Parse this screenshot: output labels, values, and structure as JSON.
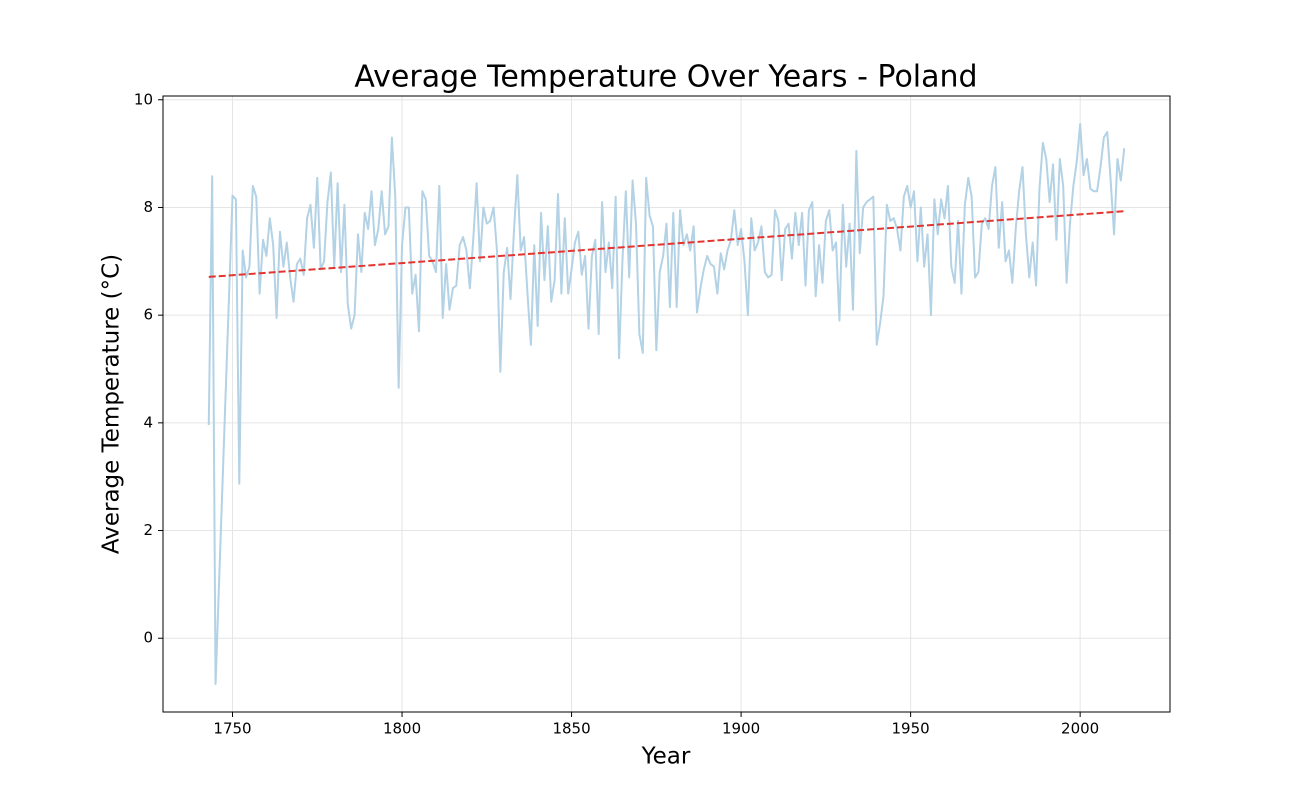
{
  "chart_data": {
    "type": "line",
    "title": "Average Temperature Over Years - Poland",
    "xlabel": "Year",
    "ylabel": "Average Temperature (°C)",
    "xlim": [
      1729.5,
      2026.5
    ],
    "ylim": [
      -1.37,
      10.07
    ],
    "xticks": [
      1750,
      1800,
      1850,
      1900,
      1950,
      2000
    ],
    "yticks": [
      0,
      2,
      4,
      6,
      8,
      10
    ],
    "grid": true,
    "series": [
      {
        "color": "#b3d2e5",
        "linestyle": "solid",
        "x": [
          1743,
          1744,
          1745,
          1750,
          1751,
          1752,
          1753,
          1754,
          1755,
          1756,
          1757,
          1758,
          1759,
          1760,
          1761,
          1762,
          1763,
          1764,
          1765,
          1766,
          1767,
          1768,
          1769,
          1770,
          1771,
          1772,
          1773,
          1774,
          1775,
          1776,
          1777,
          1778,
          1779,
          1780,
          1781,
          1782,
          1783,
          1784,
          1785,
          1786,
          1787,
          1788,
          1789,
          1790,
          1791,
          1792,
          1793,
          1794,
          1795,
          1796,
          1797,
          1798,
          1799,
          1800,
          1801,
          1802,
          1803,
          1804,
          1805,
          1806,
          1807,
          1808,
          1809,
          1810,
          1811,
          1812,
          1813,
          1814,
          1815,
          1816,
          1817,
          1818,
          1819,
          1820,
          1821,
          1822,
          1823,
          1824,
          1825,
          1826,
          1827,
          1828,
          1829,
          1830,
          1831,
          1832,
          1833,
          1834,
          1835,
          1836,
          1837,
          1838,
          1839,
          1840,
          1841,
          1842,
          1843,
          1844,
          1845,
          1846,
          1847,
          1848,
          1849,
          1850,
          1851,
          1852,
          1853,
          1854,
          1855,
          1856,
          1857,
          1858,
          1859,
          1860,
          1861,
          1862,
          1863,
          1864,
          1865,
          1866,
          1867,
          1868,
          1869,
          1870,
          1871,
          1872,
          1873,
          1874,
          1875,
          1876,
          1877,
          1878,
          1879,
          1880,
          1881,
          1882,
          1883,
          1884,
          1885,
          1886,
          1887,
          1888,
          1889,
          1890,
          1891,
          1892,
          1893,
          1894,
          1895,
          1896,
          1897,
          1898,
          1899,
          1900,
          1901,
          1902,
          1903,
          1904,
          1905,
          1906,
          1907,
          1908,
          1909,
          1910,
          1911,
          1912,
          1913,
          1914,
          1915,
          1916,
          1917,
          1918,
          1919,
          1920,
          1921,
          1922,
          1923,
          1924,
          1925,
          1926,
          1927,
          1928,
          1929,
          1930,
          1931,
          1932,
          1933,
          1934,
          1935,
          1936,
          1937,
          1938,
          1939,
          1940,
          1941,
          1942,
          1943,
          1944,
          1945,
          1946,
          1947,
          1948,
          1949,
          1950,
          1951,
          1952,
          1953,
          1954,
          1955,
          1956,
          1957,
          1958,
          1959,
          1960,
          1961,
          1962,
          1963,
          1964,
          1965,
          1966,
          1967,
          1968,
          1969,
          1970,
          1971,
          1972,
          1973,
          1974,
          1975,
          1976,
          1977,
          1978,
          1979,
          1980,
          1981,
          1982,
          1983,
          1984,
          1985,
          1986,
          1987,
          1988,
          1989,
          1990,
          1991,
          1992,
          1993,
          1994,
          1995,
          1996,
          1997,
          1998,
          1999,
          2000,
          2001,
          2002,
          2003,
          2004,
          2005,
          2006,
          2007,
          2008,
          2009,
          2010,
          2011,
          2012,
          2013
        ],
        "values": [
          3.96,
          8.58,
          -0.85,
          8.22,
          8.15,
          2.87,
          7.2,
          6.7,
          6.9,
          8.4,
          8.2,
          6.4,
          7.4,
          7.1,
          7.8,
          7.3,
          5.95,
          7.55,
          6.9,
          7.35,
          6.7,
          6.25,
          6.95,
          7.05,
          6.75,
          7.8,
          8.05,
          7.25,
          8.55,
          6.85,
          7.0,
          8.1,
          8.65,
          6.9,
          8.45,
          6.8,
          8.05,
          6.2,
          5.75,
          6.0,
          7.5,
          6.8,
          7.9,
          7.6,
          8.3,
          7.3,
          7.6,
          8.3,
          7.5,
          7.65,
          9.3,
          8.2,
          4.65,
          7.3,
          8.0,
          8.0,
          6.4,
          6.75,
          5.7,
          8.3,
          8.15,
          7.1,
          7.0,
          6.8,
          8.4,
          5.95,
          6.95,
          6.1,
          6.5,
          6.55,
          7.3,
          7.45,
          7.2,
          6.5,
          7.4,
          8.45,
          7.0,
          8.0,
          7.7,
          7.75,
          8.0,
          7.2,
          4.95,
          6.8,
          7.25,
          6.3,
          7.55,
          8.6,
          7.2,
          7.45,
          6.4,
          5.45,
          7.3,
          5.8,
          7.9,
          6.65,
          7.65,
          6.25,
          6.65,
          8.25,
          6.4,
          7.8,
          6.4,
          6.85,
          7.35,
          7.55,
          6.75,
          7.1,
          5.75,
          7.1,
          7.4,
          5.65,
          8.1,
          6.8,
          7.35,
          6.5,
          8.2,
          5.2,
          7.0,
          8.3,
          6.7,
          8.5,
          7.7,
          5.65,
          5.3,
          8.55,
          7.85,
          7.65,
          5.35,
          6.8,
          7.1,
          7.7,
          6.15,
          7.9,
          6.15,
          7.95,
          7.3,
          7.5,
          7.2,
          7.65,
          6.05,
          6.5,
          6.85,
          7.1,
          6.95,
          6.9,
          6.4,
          7.15,
          6.85,
          7.2,
          7.4,
          7.95,
          7.3,
          7.6,
          7.0,
          6.0,
          7.8,
          7.2,
          7.35,
          7.65,
          6.8,
          6.7,
          6.75,
          7.95,
          7.75,
          6.65,
          7.6,
          7.7,
          7.05,
          7.9,
          7.3,
          7.9,
          6.55,
          7.95,
          8.1,
          6.35,
          7.3,
          6.6,
          7.75,
          7.95,
          7.2,
          7.35,
          5.9,
          8.05,
          6.9,
          7.7,
          6.1,
          9.05,
          7.15,
          8.0,
          8.1,
          8.15,
          8.2,
          5.45,
          5.85,
          6.35,
          8.05,
          7.75,
          7.8,
          7.6,
          7.2,
          8.2,
          8.4,
          8.0,
          8.3,
          7.0,
          8.0,
          6.9,
          7.5,
          6.0,
          8.15,
          7.5,
          8.15,
          7.8,
          8.4,
          6.9,
          6.6,
          7.75,
          6.4,
          8.05,
          8.55,
          8.2,
          6.7,
          6.8,
          7.7,
          7.8,
          7.6,
          8.4,
          8.75,
          7.25,
          8.1,
          7.0,
          7.2,
          6.6,
          7.6,
          8.3,
          8.75,
          7.5,
          6.7,
          7.35,
          6.55,
          8.35,
          9.2,
          8.9,
          8.1,
          8.8,
          7.4,
          8.9,
          8.4,
          6.6,
          7.7,
          8.4,
          8.85,
          9.55,
          8.6,
          8.9,
          8.35,
          8.3,
          8.3,
          8.75,
          9.3,
          9.4,
          8.5,
          7.5,
          8.9,
          8.5,
          9.1
        ]
      },
      {
        "color": "#e3342f",
        "linestyle": "dashed",
        "x": [
          1743,
          2013
        ],
        "values": [
          6.71,
          7.93
        ]
      }
    ]
  }
}
